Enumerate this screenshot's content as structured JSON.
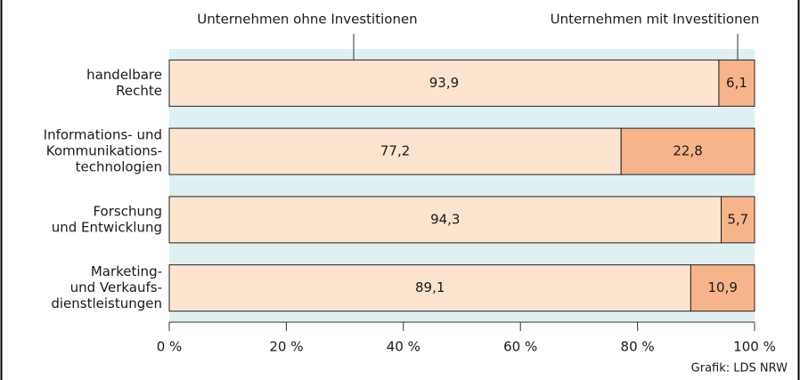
{
  "chart_data": {
    "type": "stacked-bar-horizontal",
    "categories": [
      [
        "handelbare",
        "Rechte"
      ],
      [
        "Informations- und",
        "Kommunikations-",
        "technologien"
      ],
      [
        "Forschung",
        "und Entwicklung"
      ],
      [
        "Marketing-",
        "und Verkaufs-",
        "dienstleistungen"
      ]
    ],
    "series": [
      {
        "name": "Unternehmen ohne Investitionen",
        "color": "#fde4cf",
        "values": [
          93.9,
          77.2,
          94.3,
          89.1
        ],
        "value_labels": [
          "93,9",
          "77,2",
          "94,3",
          "89,1"
        ]
      },
      {
        "name": "Unternehmen mit Investitionen",
        "color": "#f7b48a",
        "values": [
          6.1,
          22.8,
          5.7,
          10.9
        ],
        "value_labels": [
          "6,1",
          "22,8",
          "5,7",
          "10,9"
        ]
      }
    ],
    "xlim": [
      0,
      100
    ],
    "xticks": [
      {
        "value": 0,
        "label": "0 %"
      },
      {
        "value": 20,
        "label": "20 %"
      },
      {
        "value": 40,
        "label": "40 %"
      },
      {
        "value": 60,
        "label": "60 %"
      },
      {
        "value": 80,
        "label": "80 %"
      },
      {
        "value": 100,
        "label": "100 %"
      }
    ],
    "source": "Grafik: LDS NRW"
  }
}
